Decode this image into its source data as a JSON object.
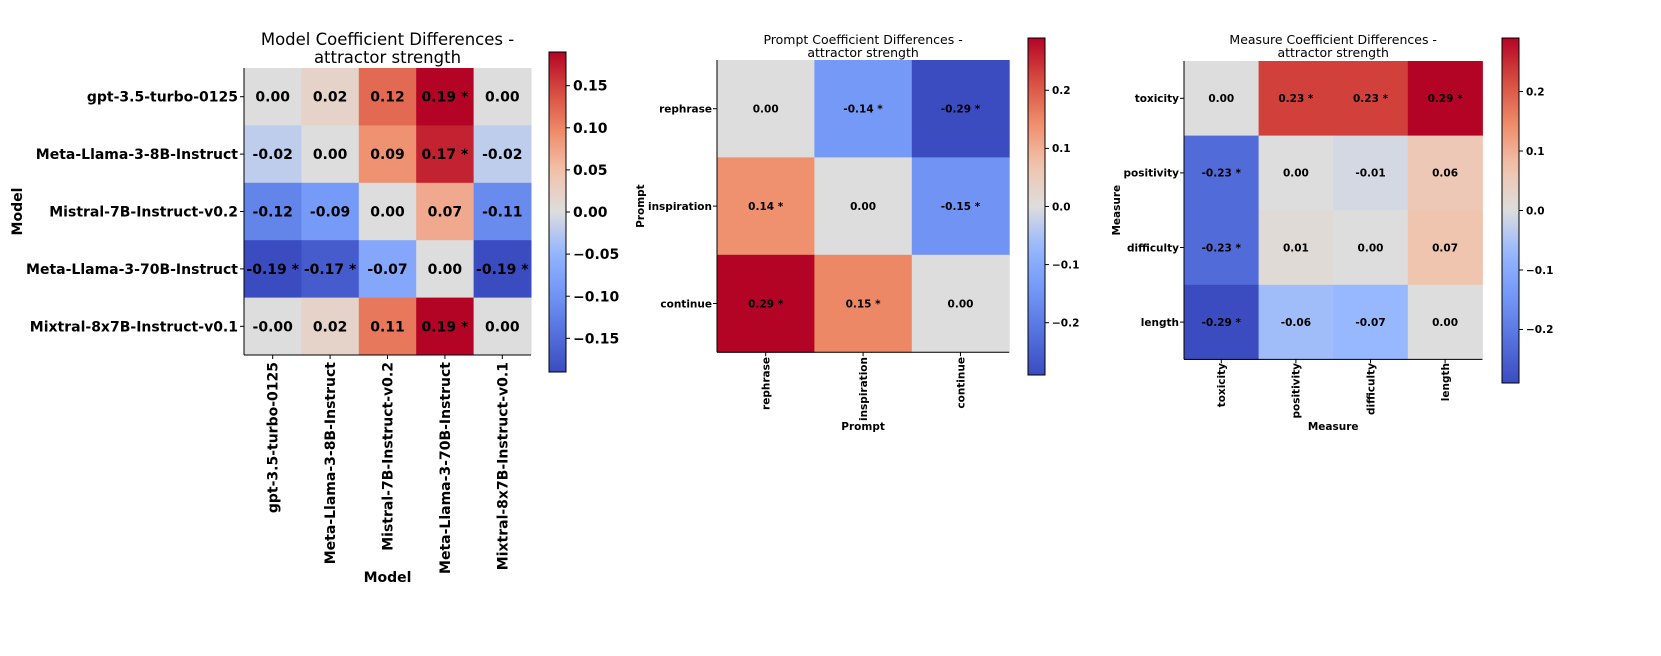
{
  "chart_data": [
    {
      "type": "heatmap",
      "title_lines": [
        "Model Coefficient Differences -",
        "attractor strength"
      ],
      "xlabel": "Model",
      "ylabel": "Model",
      "rows": [
        "gpt-3.5-turbo-0125",
        "Meta-Llama-3-8B-Instruct",
        "Mistral-7B-Instruct-v0.2",
        "Meta-Llama-3-70B-Instruct",
        "Mixtral-8x7B-Instruct-v0.1"
      ],
      "columns": [
        "gpt-3.5-turbo-0125",
        "Meta-Llama-3-8B-Instruct",
        "Mistral-7B-Instruct-v0.2",
        "Meta-Llama-3-70B-Instruct",
        "Mixtral-8x7B-Instruct-v0.1"
      ],
      "values": [
        [
          0.0,
          0.02,
          0.12,
          0.19,
          0.0
        ],
        [
          -0.02,
          0.0,
          0.09,
          0.17,
          -0.02
        ],
        [
          -0.12,
          -0.09,
          0.0,
          0.07,
          -0.11
        ],
        [
          -0.19,
          -0.17,
          -0.07,
          0.0,
          -0.19
        ],
        [
          -0.0,
          0.02,
          0.11,
          0.19,
          0.0
        ]
      ],
      "labels": [
        [
          "0.00",
          "0.02",
          "0.12",
          "0.19 *",
          "0.00"
        ],
        [
          "-0.02",
          "0.00",
          "0.09",
          "0.17 *",
          "-0.02"
        ],
        [
          "-0.12",
          "-0.09",
          "0.00",
          "0.07",
          "-0.11"
        ],
        [
          "-0.19 *",
          "-0.17 *",
          "-0.07",
          "0.00",
          "-0.19 *"
        ],
        [
          "-0.00",
          "0.02",
          "0.11",
          "0.19 *",
          "0.00"
        ]
      ],
      "color_range": [
        -0.19,
        0.19
      ],
      "colorbar_ticks": [
        -0.15,
        -0.1,
        -0.05,
        0.0,
        0.05,
        0.1,
        0.15
      ],
      "colorbar_tick_labels": [
        "−0.15",
        "−0.10",
        "−0.05",
        "0.00",
        "0.05",
        "0.10",
        "0.15"
      ],
      "colormap": "coolwarm"
    },
    {
      "type": "heatmap",
      "title_lines": [
        "Prompt Coefficient Differences -",
        "attractor strength"
      ],
      "xlabel": "Prompt",
      "ylabel": "Prompt",
      "rows": [
        "rephrase",
        "inspiration",
        "continue"
      ],
      "columns": [
        "rephrase",
        "inspiration",
        "continue"
      ],
      "values": [
        [
          0.0,
          -0.14,
          -0.29
        ],
        [
          0.14,
          0.0,
          -0.15
        ],
        [
          0.29,
          0.15,
          0.0
        ]
      ],
      "labels": [
        [
          "0.00",
          "-0.14 *",
          "-0.29 *"
        ],
        [
          "0.14 *",
          "0.00",
          "-0.15 *"
        ],
        [
          "0.29 *",
          "0.15 *",
          "0.00"
        ]
      ],
      "color_range": [
        -0.29,
        0.29
      ],
      "colorbar_ticks": [
        -0.2,
        -0.1,
        0.0,
        0.1,
        0.2
      ],
      "colorbar_tick_labels": [
        "−0.2",
        "−0.1",
        "0.0",
        "0.1",
        "0.2"
      ],
      "colormap": "coolwarm"
    },
    {
      "type": "heatmap",
      "title_lines": [
        "Measure Coefficient Differences -",
        "attractor strength"
      ],
      "xlabel": "Measure",
      "ylabel": "Measure",
      "rows": [
        "toxicity",
        "positivity",
        "difficulty",
        "length"
      ],
      "columns": [
        "toxicity",
        "positivity",
        "difficulty",
        "length"
      ],
      "values": [
        [
          0.0,
          0.23,
          0.23,
          0.29
        ],
        [
          -0.23,
          0.0,
          -0.01,
          0.06
        ],
        [
          -0.23,
          0.01,
          0.0,
          0.07
        ],
        [
          -0.29,
          -0.06,
          -0.07,
          0.0
        ]
      ],
      "labels": [
        [
          "0.00",
          "0.23 *",
          "0.23 *",
          "0.29 *"
        ],
        [
          "-0.23 *",
          "0.00",
          "-0.01",
          "0.06"
        ],
        [
          "-0.23 *",
          "0.01",
          "0.00",
          "0.07"
        ],
        [
          "-0.29 *",
          "-0.06",
          "-0.07",
          "0.00"
        ]
      ],
      "color_range": [
        -0.29,
        0.29
      ],
      "colorbar_ticks": [
        -0.2,
        -0.1,
        0.0,
        0.1,
        0.2
      ],
      "colorbar_tick_labels": [
        "−0.2",
        "−0.1",
        "0.0",
        "0.1",
        "0.2"
      ],
      "colormap": "coolwarm"
    }
  ]
}
